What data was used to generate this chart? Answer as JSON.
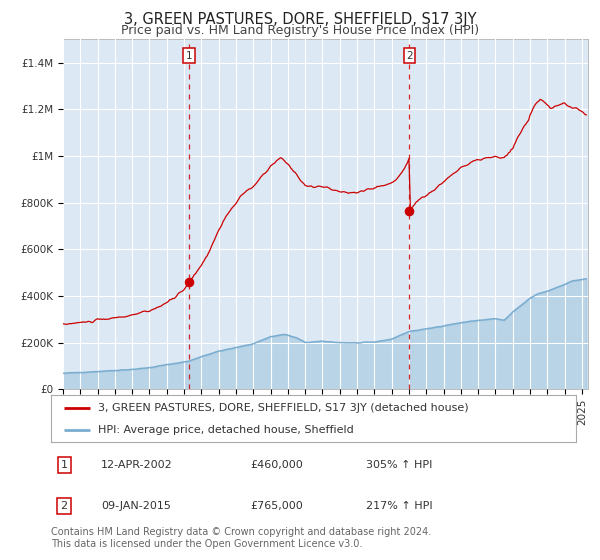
{
  "title": "3, GREEN PASTURES, DORE, SHEFFIELD, S17 3JY",
  "subtitle": "Price paid vs. HM Land Registry's House Price Index (HPI)",
  "ylim": [
    0,
    1500000
  ],
  "yticks": [
    0,
    200000,
    400000,
    600000,
    800000,
    1000000,
    1200000,
    1400000
  ],
  "ytick_labels": [
    "£0",
    "£200K",
    "£400K",
    "£600K",
    "£800K",
    "£1M",
    "£1.2M",
    "£1.4M"
  ],
  "background_color": "#ffffff",
  "plot_bg_color": "#dce9f5",
  "grid_color": "#cccccc",
  "sale1_date": 2002.28,
  "sale1_price": 460000,
  "sale1_label": "12-APR-2002",
  "sale1_hpi_pct": "305%",
  "sale2_date": 2015.03,
  "sale2_price": 765000,
  "sale2_label": "09-JAN-2015",
  "sale2_hpi_pct": "217%",
  "red_line_color": "#cc0000",
  "blue_line_color": "#7aadcf",
  "blue_fill_alpha": 0.35,
  "dashed_line_color": "#cc0000",
  "legend1_label": "3, GREEN PASTURES, DORE, SHEFFIELD, S17 3JY (detached house)",
  "legend2_label": "HPI: Average price, detached house, Sheffield",
  "footnote": "Contains HM Land Registry data © Crown copyright and database right 2024.\nThis data is licensed under the Open Government Licence v3.0.",
  "title_fontsize": 10.5,
  "subtitle_fontsize": 9,
  "tick_fontsize": 7.5,
  "legend_fontsize": 8,
  "note_fontsize": 7
}
